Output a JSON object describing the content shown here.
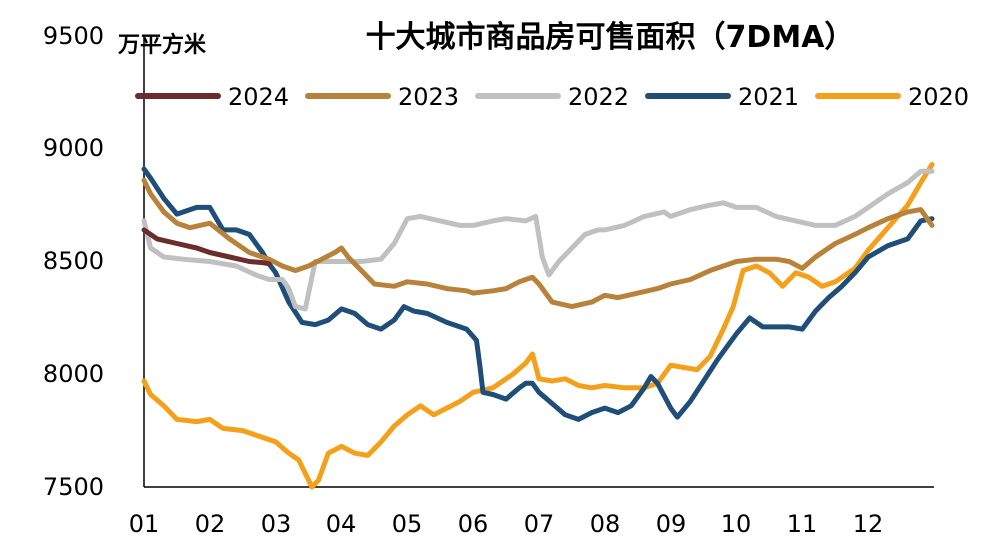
{
  "chart_data": {
    "type": "line",
    "title": "十大城市商品房可售面积（7DMA）",
    "ylabel": "万平方米",
    "xlabel": "",
    "ylim": [
      7500,
      9500
    ],
    "yticks": [
      "7500",
      "8000",
      "8500",
      "9000",
      "9500"
    ],
    "xticks": [
      "01",
      "02",
      "03",
      "04",
      "05",
      "06",
      "07",
      "08",
      "09",
      "10",
      "11",
      "12"
    ],
    "xlim": [
      1,
      13
    ],
    "grid": false,
    "legend_position": "top",
    "series": [
      {
        "name": "2024",
        "color": "#6B2C2C",
        "x": [
          1.0,
          1.2,
          1.5,
          1.8,
          2.0,
          2.3,
          2.6,
          2.8,
          2.9
        ],
        "y": [
          8640,
          8600,
          8580,
          8560,
          8540,
          8520,
          8500,
          8495,
          8490
        ]
      },
      {
        "name": "2023",
        "color": "#B8823A",
        "x": [
          1.0,
          1.1,
          1.3,
          1.5,
          1.7,
          2.0,
          2.3,
          2.6,
          2.9,
          3.1,
          3.3,
          3.5,
          3.7,
          3.9,
          4.0,
          4.1,
          4.3,
          4.5,
          4.8,
          5.0,
          5.3,
          5.6,
          5.9,
          6.0,
          6.3,
          6.5,
          6.7,
          6.8,
          6.9,
          7.0,
          7.2,
          7.5,
          7.8,
          8.0,
          8.2,
          8.5,
          8.8,
          9.0,
          9.3,
          9.6,
          9.8,
          10.0,
          10.3,
          10.6,
          10.8,
          11.0,
          11.2,
          11.5,
          11.8,
          12.0,
          12.3,
          12.6,
          12.8,
          12.97
        ],
        "y": [
          8860,
          8800,
          8720,
          8670,
          8650,
          8670,
          8600,
          8540,
          8510,
          8480,
          8460,
          8480,
          8510,
          8540,
          8560,
          8520,
          8460,
          8400,
          8390,
          8410,
          8400,
          8380,
          8370,
          8360,
          8370,
          8380,
          8410,
          8420,
          8430,
          8400,
          8320,
          8300,
          8320,
          8350,
          8340,
          8360,
          8380,
          8400,
          8420,
          8460,
          8480,
          8500,
          8510,
          8510,
          8500,
          8470,
          8520,
          8580,
          8620,
          8650,
          8690,
          8720,
          8730,
          8660
        ]
      },
      {
        "name": "2022",
        "color": "#C0C0C0",
        "x": [
          1.0,
          1.1,
          1.3,
          1.6,
          2.0,
          2.4,
          2.7,
          2.9,
          3.1,
          3.2,
          3.3,
          3.45,
          3.6,
          3.8,
          4.0,
          4.3,
          4.6,
          4.8,
          5.0,
          5.2,
          5.5,
          5.8,
          6.0,
          6.3,
          6.5,
          6.8,
          6.95,
          7.05,
          7.15,
          7.3,
          7.5,
          7.7,
          7.9,
          8.0,
          8.3,
          8.6,
          8.9,
          9.0,
          9.3,
          9.6,
          9.8,
          10.0,
          10.3,
          10.6,
          10.9,
          11.2,
          11.5,
          11.8,
          12.0,
          12.3,
          12.6,
          12.8,
          12.97
        ],
        "y": [
          8680,
          8560,
          8520,
          8510,
          8500,
          8480,
          8440,
          8420,
          8420,
          8380,
          8300,
          8290,
          8500,
          8500,
          8500,
          8500,
          8510,
          8580,
          8690,
          8700,
          8680,
          8660,
          8660,
          8680,
          8690,
          8680,
          8700,
          8520,
          8440,
          8500,
          8560,
          8620,
          8640,
          8640,
          8660,
          8700,
          8720,
          8700,
          8730,
          8750,
          8760,
          8740,
          8740,
          8700,
          8680,
          8660,
          8660,
          8700,
          8740,
          8800,
          8850,
          8900,
          8900
        ]
      },
      {
        "name": "2021",
        "color": "#1F4E79",
        "x": [
          1.0,
          1.1,
          1.3,
          1.5,
          1.8,
          2.0,
          2.2,
          2.4,
          2.6,
          2.8,
          2.9,
          3.0,
          3.2,
          3.4,
          3.6,
          3.8,
          4.0,
          4.2,
          4.4,
          4.6,
          4.8,
          4.95,
          5.1,
          5.3,
          5.6,
          5.9,
          6.05,
          6.1,
          6.15,
          6.3,
          6.5,
          6.7,
          6.8,
          6.9,
          7.0,
          7.2,
          7.4,
          7.6,
          7.8,
          8.0,
          8.2,
          8.4,
          8.6,
          8.7,
          8.8,
          9.0,
          9.1,
          9.3,
          9.5,
          9.7,
          9.85,
          10.0,
          10.2,
          10.4,
          10.6,
          10.8,
          11.0,
          11.2,
          11.4,
          11.6,
          11.8,
          12.0,
          12.3,
          12.6,
          12.8,
          12.97
        ],
        "y": [
          8910,
          8870,
          8780,
          8710,
          8740,
          8740,
          8640,
          8640,
          8620,
          8540,
          8490,
          8450,
          8320,
          8230,
          8220,
          8240,
          8290,
          8270,
          8220,
          8200,
          8240,
          8300,
          8280,
          8270,
          8230,
          8200,
          8150,
          8040,
          7920,
          7910,
          7890,
          7940,
          7960,
          7960,
          7920,
          7870,
          7820,
          7800,
          7830,
          7850,
          7830,
          7860,
          7940,
          7990,
          7960,
          7850,
          7810,
          7880,
          7970,
          8060,
          8120,
          8180,
          8250,
          8210,
          8210,
          8210,
          8200,
          8280,
          8340,
          8390,
          8450,
          8520,
          8570,
          8600,
          8680,
          8690
        ]
      },
      {
        "name": "2020",
        "color": "#F5A01A",
        "x": [
          1.0,
          1.1,
          1.3,
          1.5,
          1.8,
          2.0,
          2.2,
          2.5,
          2.8,
          3.0,
          3.2,
          3.35,
          3.45,
          3.55,
          3.65,
          3.8,
          4.0,
          4.2,
          4.4,
          4.6,
          4.8,
          5.0,
          5.2,
          5.4,
          5.6,
          5.8,
          6.0,
          6.3,
          6.6,
          6.8,
          6.9,
          7.0,
          7.2,
          7.4,
          7.6,
          7.8,
          8.0,
          8.3,
          8.6,
          8.8,
          8.9,
          9.0,
          9.2,
          9.4,
          9.6,
          9.8,
          9.95,
          10.1,
          10.3,
          10.5,
          10.7,
          10.9,
          11.1,
          11.3,
          11.5,
          11.8,
          12.0,
          12.3,
          12.6,
          12.8,
          12.97
        ],
        "y": [
          7970,
          7910,
          7860,
          7800,
          7790,
          7800,
          7760,
          7750,
          7720,
          7700,
          7650,
          7620,
          7560,
          7500,
          7530,
          7650,
          7680,
          7650,
          7640,
          7700,
          7770,
          7820,
          7860,
          7820,
          7850,
          7880,
          7920,
          7940,
          8000,
          8050,
          8090,
          7980,
          7970,
          7980,
          7950,
          7940,
          7950,
          7940,
          7940,
          7960,
          8000,
          8040,
          8030,
          8020,
          8080,
          8200,
          8300,
          8460,
          8480,
          8450,
          8390,
          8450,
          8430,
          8390,
          8410,
          8470,
          8550,
          8650,
          8750,
          8850,
          8930
        ]
      }
    ]
  }
}
